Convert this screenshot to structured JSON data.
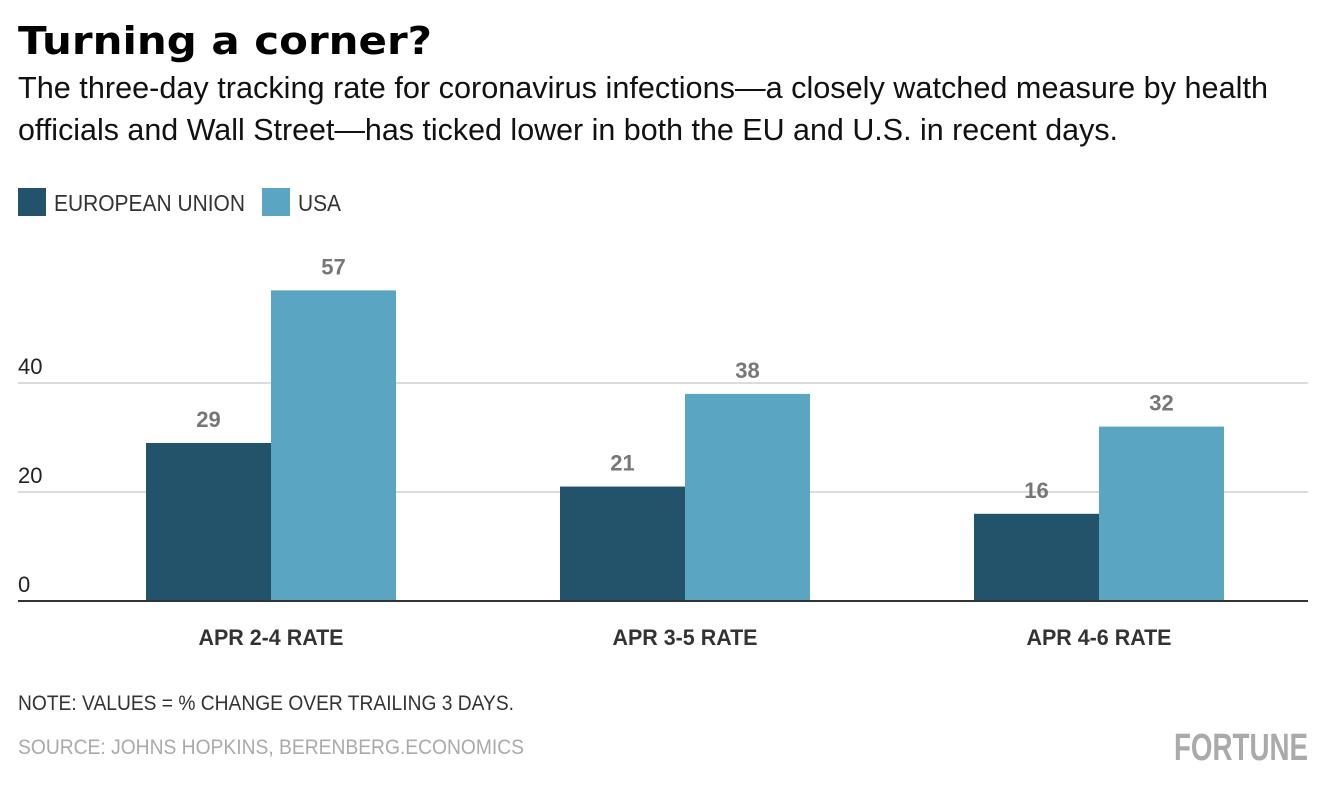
{
  "header": {
    "title": "Turning a corner?",
    "subtitle_line1": "The three-day tracking rate for coronavirus infections—a closely watched measure by health",
    "subtitle_line2": "officials and Wall Street—has ticked lower in both the EU and U.S. in recent days."
  },
  "chart_data": {
    "type": "bar",
    "categories": [
      "APR 2-4 RATE",
      "APR 3-5 RATE",
      "APR 4-6 RATE"
    ],
    "series": [
      {
        "name": "EUROPEAN UNION",
        "values": [
          29,
          21,
          16
        ],
        "color": "#22536b"
      },
      {
        "name": "USA",
        "values": [
          57,
          38,
          32
        ],
        "color": "#5aa5c2"
      }
    ],
    "yticks": [
      0,
      20,
      40
    ],
    "ylim": [
      0,
      60
    ],
    "grid": true,
    "legend_placement": "top-left",
    "data_labels": true
  },
  "footer": {
    "note": "NOTE: VALUES = % CHANGE OVER TRAILING 3 DAYS.",
    "source": "SOURCE: JOHNS HOPKINS, BERENBERG.ECONOMICS",
    "logo": "FORTUNE"
  }
}
